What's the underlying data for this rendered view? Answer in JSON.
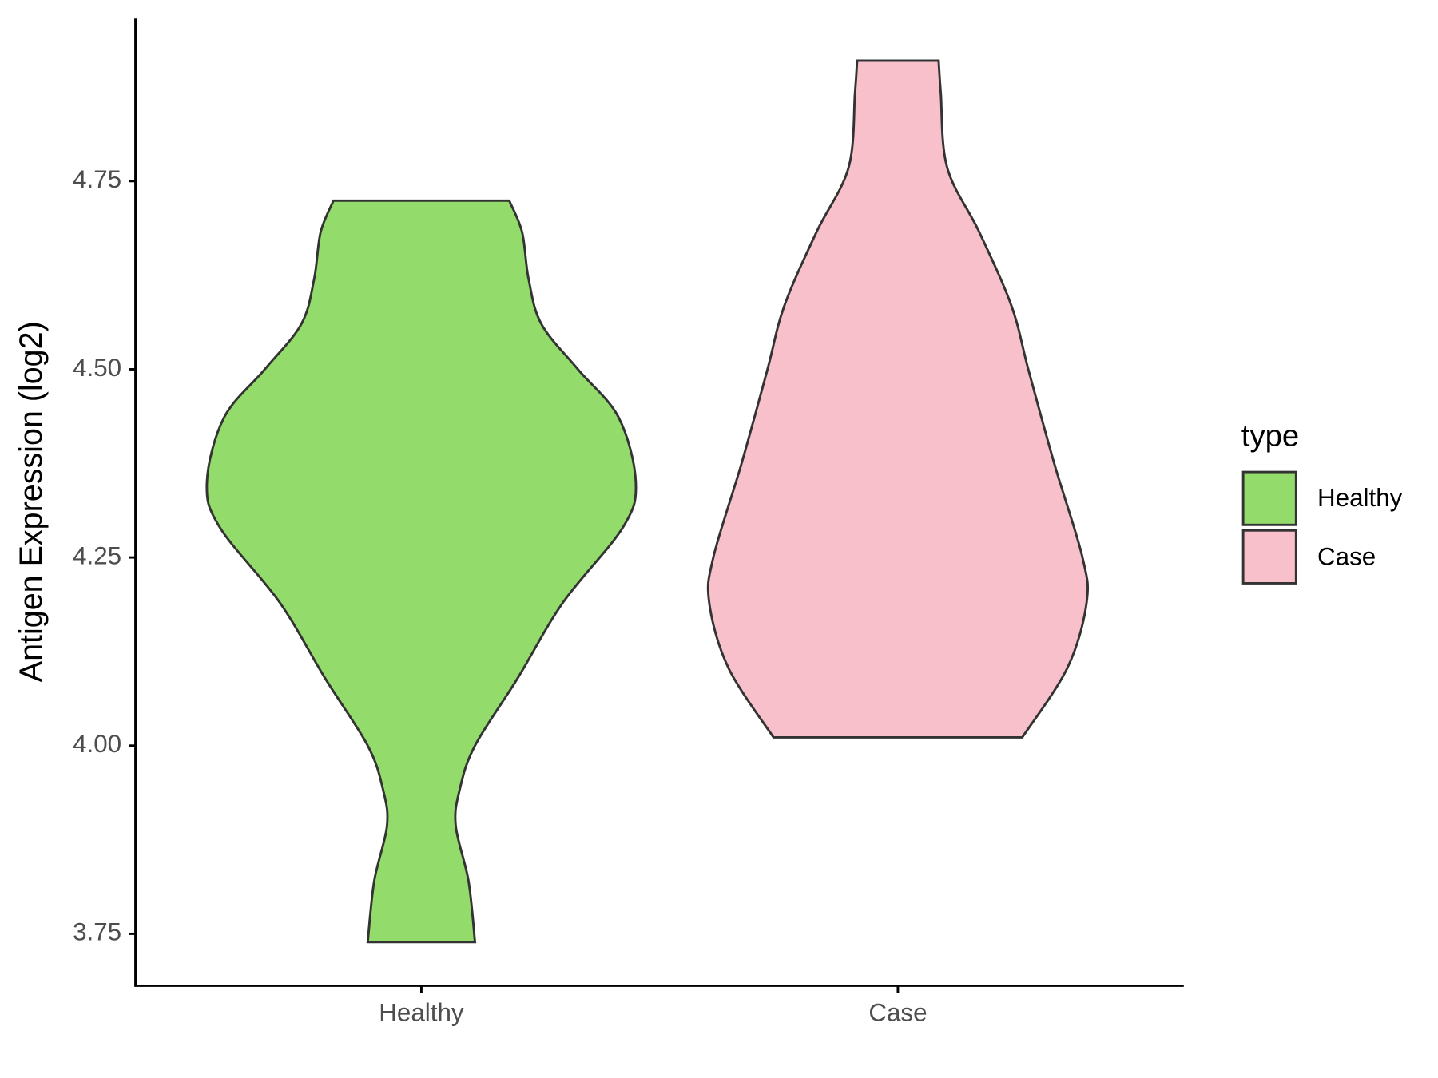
{
  "chart_data": {
    "type": "violin",
    "y_label": "Antigen Expression (log2)",
    "categories": [
      "Healthy",
      "Case"
    ],
    "legend_title": "type",
    "legend_position": "right",
    "ylim": [
      3.681,
      4.966
    ],
    "yticks": [
      3.75,
      {
        "value": 4.0,
        "label": "4.00"
      },
      4.25,
      {
        "value": 4.5,
        "label": "4.50"
      },
      4.75
    ],
    "series": [
      {
        "name": "Healthy",
        "color": "#93DC6B",
        "y": [
          4.724,
          4.682,
          4.62,
          4.56,
          4.5,
          4.436,
          4.35,
          4.29,
          4.19,
          4.09,
          4.0,
          3.943,
          3.894,
          3.82,
          3.739
        ],
        "width": [
          0.41,
          0.47,
          0.5,
          0.56,
          0.73,
          0.92,
          1.0,
          0.94,
          0.66,
          0.45,
          0.25,
          0.18,
          0.16,
          0.22,
          0.25
        ]
      },
      {
        "name": "Case",
        "color": "#F7C0CB",
        "y": [
          4.91,
          4.867,
          4.768,
          4.682,
          4.584,
          4.498,
          4.374,
          4.251,
          4.19,
          4.103,
          4.011
        ],
        "width": [
          0.19,
          0.2,
          0.23,
          0.38,
          0.53,
          0.61,
          0.73,
          0.86,
          0.88,
          0.79,
          0.58
        ]
      }
    ]
  }
}
